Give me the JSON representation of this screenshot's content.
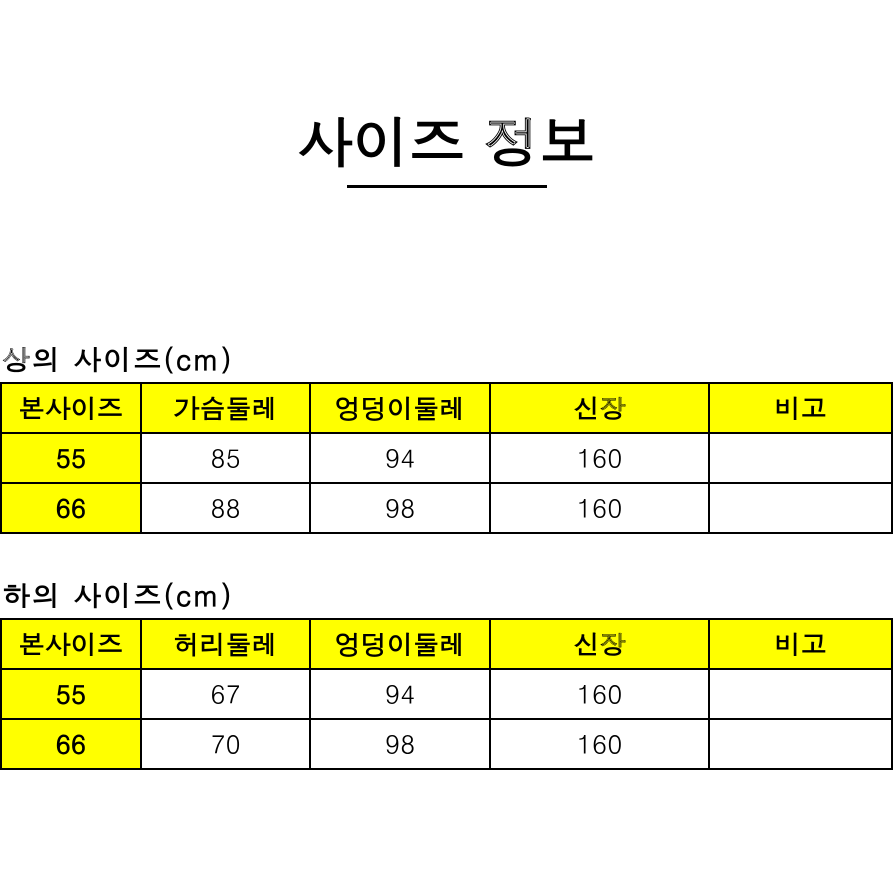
{
  "title": "사이즈 정보",
  "top": {
    "label": "상의 사이즈(cm)",
    "columns": [
      "본사이즈",
      "가슴둘레",
      "엉덩이둘레",
      "신장",
      "비고"
    ],
    "rows": [
      {
        "size": "55",
        "c1": "85",
        "c2": "94",
        "c3": "160",
        "c4": ""
      },
      {
        "size": "66",
        "c1": "88",
        "c2": "98",
        "c3": "160",
        "c4": ""
      }
    ]
  },
  "bottom": {
    "label": "하의 사이즈(cm)",
    "columns": [
      "본사이즈",
      "허리둘레",
      "엉덩이둘레",
      "신장",
      "비고"
    ],
    "rows": [
      {
        "size": "55",
        "c1": "67",
        "c2": "94",
        "c3": "160",
        "c4": ""
      },
      {
        "size": "66",
        "c1": "70",
        "c2": "98",
        "c3": "160",
        "c4": ""
      }
    ]
  },
  "styling": {
    "header_bg": "#ffff00",
    "border_color": "#000000",
    "background": "#ffffff",
    "title_fontsize": 56,
    "label_fontsize": 28,
    "cell_fontsize": 26
  }
}
